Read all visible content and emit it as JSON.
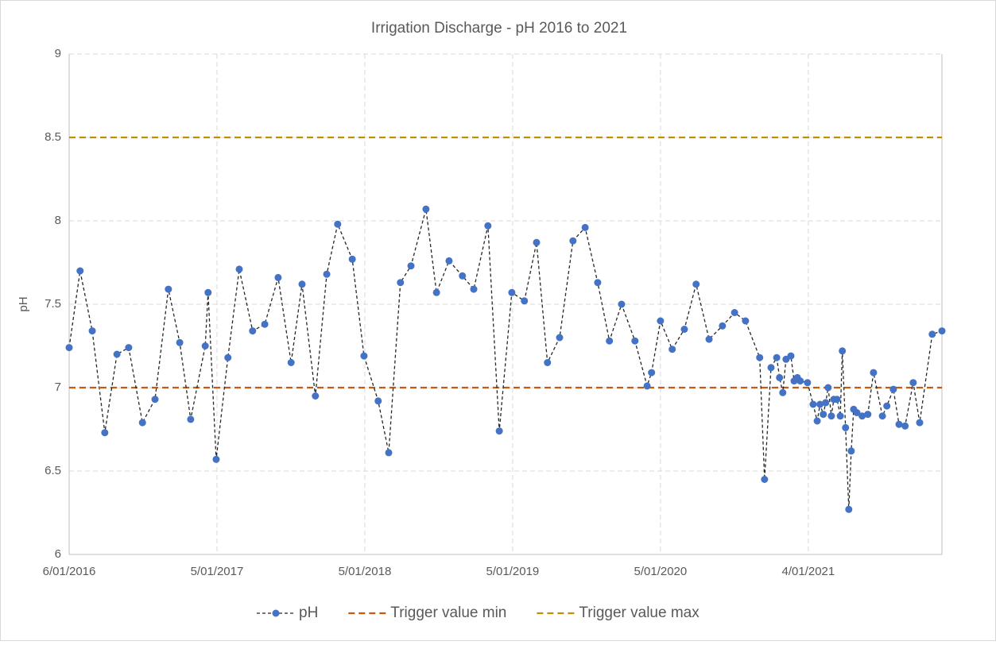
{
  "chart_data": {
    "type": "line",
    "title": "Irrigation Discharge -  pH 2016 to 2021",
    "ylabel": "pH",
    "x": [
      "2016-01-06",
      "2016-02-02",
      "2016-03-03",
      "2016-04-03",
      "2016-05-03",
      "2016-06-01",
      "2016-07-05",
      "2016-08-05",
      "2016-09-07",
      "2016-10-05",
      "2016-11-01",
      "2016-12-07",
      "2016-12-14",
      "2017-01-03",
      "2017-02-01",
      "2017-03-01",
      "2017-04-03",
      "2017-05-03",
      "2017-06-05",
      "2017-07-07",
      "2017-08-03",
      "2017-09-05",
      "2017-10-03",
      "2017-10-30",
      "2017-12-05",
      "2018-01-03",
      "2018-02-07",
      "2018-03-05",
      "2018-04-03",
      "2018-04-29",
      "2018-06-05",
      "2018-07-01",
      "2018-08-01",
      "2018-09-03",
      "2018-10-01",
      "2018-11-05",
      "2018-12-03",
      "2019-01-03",
      "2019-02-03",
      "2019-03-05",
      "2019-04-01",
      "2019-05-01",
      "2019-06-03",
      "2019-07-03",
      "2019-08-03",
      "2019-09-01",
      "2019-10-01",
      "2019-11-03",
      "2019-12-03",
      "2019-12-14",
      "2020-01-05",
      "2020-02-03",
      "2020-03-04",
      "2020-04-02",
      "2020-05-04",
      "2020-06-06",
      "2020-07-06",
      "2020-08-02",
      "2020-09-06",
      "2020-09-18",
      "2020-10-04",
      "2020-10-18",
      "2020-10-25",
      "2020-11-02",
      "2020-11-10",
      "2020-11-22",
      "2020-11-30",
      "2020-12-08",
      "2020-12-15",
      "2021-01-02",
      "2021-01-16",
      "2021-01-26",
      "2021-02-02",
      "2021-02-10",
      "2021-02-16",
      "2021-02-22",
      "2021-03-02",
      "2021-03-08",
      "2021-03-16",
      "2021-03-24",
      "2021-03-29",
      "2021-04-06",
      "2021-04-14",
      "2021-04-20",
      "2021-04-26",
      "2021-05-04",
      "2021-05-17",
      "2021-05-31",
      "2021-06-14",
      "2021-07-06",
      "2021-07-17",
      "2021-08-02",
      "2021-08-16",
      "2021-08-31",
      "2021-09-20",
      "2021-10-06",
      "2021-11-06",
      "2021-11-30"
    ],
    "series": [
      {
        "name": "pH",
        "color": "#4472c4",
        "values": [
          7.24,
          7.7,
          7.34,
          6.73,
          7.2,
          7.24,
          6.79,
          6.93,
          7.59,
          7.27,
          6.81,
          7.25,
          7.57,
          6.57,
          7.18,
          7.71,
          7.34,
          7.38,
          7.66,
          7.15,
          7.62,
          6.95,
          7.68,
          7.98,
          7.77,
          7.19,
          6.92,
          6.61,
          7.63,
          7.73,
          8.07,
          7.57,
          7.76,
          7.67,
          7.59,
          7.97,
          6.74,
          7.57,
          7.52,
          7.87,
          7.15,
          7.3,
          7.88,
          7.96,
          7.63,
          7.28,
          7.5,
          7.28,
          7.01,
          7.09,
          7.4,
          7.23,
          7.35,
          7.62,
          7.29,
          7.37,
          7.45,
          7.4,
          7.18,
          6.45,
          7.12,
          7.18,
          7.06,
          6.97,
          7.17,
          7.19,
          7.04,
          7.06,
          7.04,
          7.03,
          6.9,
          6.8,
          6.9,
          6.84,
          6.91,
          7.0,
          6.83,
          6.93,
          6.93,
          6.83,
          7.22,
          6.76,
          6.27,
          6.62,
          6.87,
          6.85,
          6.83,
          6.84,
          7.09,
          6.83,
          6.89,
          6.99,
          6.78,
          6.77,
          7.03,
          6.79,
          7.32,
          7.34
        ]
      },
      {
        "name": "Trigger value min",
        "color": "#c55a11",
        "x": [
          "2016-01-06",
          "2021-11-30"
        ],
        "values": [
          7,
          7
        ]
      },
      {
        "name": "Trigger value max",
        "color": "#bf9000",
        "x": [
          "2016-01-06",
          "2021-11-30"
        ],
        "values": [
          8.5,
          8.5
        ]
      }
    ],
    "xlim": [
      "2016-01-06",
      "2021-11-30"
    ],
    "xticks": [
      {
        "value": "2016-01-06",
        "label": "6/01/2016"
      },
      {
        "value": "2017-01-05",
        "label": "5/01/2017"
      },
      {
        "value": "2018-01-05",
        "label": "5/01/2018"
      },
      {
        "value": "2019-01-05",
        "label": "5/01/2019"
      },
      {
        "value": "2020-01-05",
        "label": "5/01/2020"
      },
      {
        "value": "2021-01-04",
        "label": "4/01/2021"
      }
    ],
    "ylim": [
      6,
      9
    ],
    "yticks": [
      6,
      6.5,
      7,
      7.5,
      8,
      8.5,
      9
    ],
    "grid": true,
    "legend": "bottom"
  }
}
